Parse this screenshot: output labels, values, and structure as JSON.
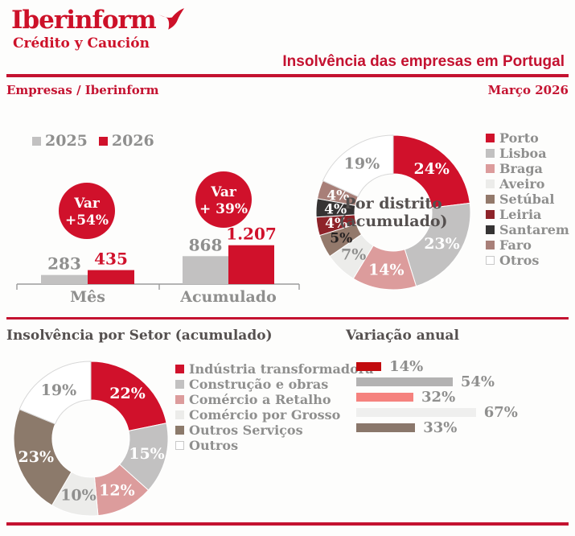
{
  "header": {
    "logo_title": "Iberinform",
    "logo_subtitle": "Crédito y Caución",
    "title": "Insolvência das empresas em Portugal",
    "breadcrumb": "Empresas / Iberinform",
    "date": "Março 2026"
  },
  "sections": {
    "sector_title": "Insolvência por Setor (acumulado)",
    "variation_title": "Variação anual"
  },
  "years_legend": [
    {
      "label": "2025",
      "color": "#c2c1c1"
    },
    {
      "label": "2026",
      "color": "#d0112b"
    }
  ],
  "colors": {
    "brand_red": "#cd1129",
    "rule_red": "#c41230",
    "text_gray": "#8f8f8e",
    "axis_gray": "#9b9b9b",
    "section_gray": "#55504f"
  },
  "chart_data": [
    {
      "id": "insolvency-bars",
      "type": "bar",
      "categories": [
        "Mês",
        "Acumulado"
      ],
      "series": [
        {
          "name": "2025",
          "color": "#c2c1c1",
          "values": [
            283,
            868
          ],
          "labels": [
            "283",
            "868"
          ],
          "label_color": "#8f8f8e"
        },
        {
          "name": "2026",
          "color": "#d0112b",
          "values": [
            435,
            1207
          ],
          "labels": [
            "435",
            "1.207"
          ],
          "label_color": "#d0112b"
        }
      ],
      "annotations": [
        {
          "line1": "Var",
          "line2": "+54%",
          "color": "#d0112b",
          "text_color": "#ffffff"
        },
        {
          "line1": "Var",
          "line2": "+ 39%",
          "color": "#d0112b",
          "text_color": "#ffffff"
        }
      ],
      "ylim": [
        0,
        1300
      ],
      "grid": false,
      "legend_position": "top-left"
    },
    {
      "id": "district-donut",
      "type": "pie",
      "title": "Por distrito (acumulado)",
      "center_label": [
        "Por distrito",
        "(acumulado)"
      ],
      "slices": [
        {
          "label": "Porto",
          "value": 24,
          "pct_label": "24%",
          "color": "#d0112b",
          "text_color": "#ffffff"
        },
        {
          "label": "Lisboa",
          "value": 23,
          "pct_label": "23%",
          "color": "#c2c1c1",
          "text_color": "#ffffff"
        },
        {
          "label": "Braga",
          "value": 14,
          "pct_label": "14%",
          "color": "#dc9c9c",
          "text_color": "#ffffff"
        },
        {
          "label": "Aveiro",
          "value": 7,
          "pct_label": "7%",
          "color": "#ececea",
          "text_color": "#8f8f8e"
        },
        {
          "label": "Setúbal",
          "value": 5,
          "pct_label": "5%",
          "color": "#93796b",
          "text_color": "#262222"
        },
        {
          "label": "Leiria",
          "value": 4,
          "pct_label": "4%",
          "color": "#8e2329",
          "text_color": "#ffffff"
        },
        {
          "label": "Santarem",
          "value": 4,
          "pct_label": "4%",
          "color": "#353333",
          "text_color": "#ffffff"
        },
        {
          "label": "Faro",
          "value": 4,
          "pct_label": "4%",
          "color": "#a87f78",
          "text_color": "#ffffff"
        },
        {
          "label": "Otros",
          "value": 19,
          "pct_label": "19%",
          "color": "#ffffff",
          "text_color": "#8f8f8e",
          "outline": true
        }
      ],
      "legend_position": "right"
    },
    {
      "id": "sector-donut",
      "type": "pie",
      "title": "Insolvência por Setor (acumulado)",
      "slices": [
        {
          "label": "Indústria transformadora",
          "value": 22,
          "pct_label": "22%",
          "color": "#d0112b",
          "text_color": "#ffffff"
        },
        {
          "label": "Construção e obras",
          "value": 15,
          "pct_label": "15%",
          "color": "#c2c1c1",
          "text_color": "#ffffff"
        },
        {
          "label": "Comércio a Retalho",
          "value": 12,
          "pct_label": "12%",
          "color": "#dc9c9c",
          "text_color": "#ffffff"
        },
        {
          "label": "Comércio por Grosso",
          "value": 10,
          "pct_label": "10%",
          "color": "#ececea",
          "text_color": "#8f8f8e"
        },
        {
          "label": "Outros Serviços",
          "value": 23,
          "pct_label": "23%",
          "color": "#8c7a6b",
          "text_color": "#ffffff"
        },
        {
          "label": "Outros",
          "value": 19,
          "pct_label": "19%",
          "color": "#ffffff",
          "text_color": "#8f8f8e",
          "outline": true
        }
      ],
      "legend_position": "right"
    },
    {
      "id": "annual-variation",
      "type": "bar",
      "orientation": "horizontal",
      "title": "Variação anual",
      "values": [
        14,
        54,
        32,
        67,
        33
      ],
      "labels": [
        "14%",
        "54%",
        "32%",
        "67%",
        "33%"
      ],
      "colors": [
        "#c20b0e",
        "#b3b2b2",
        "#f5827e",
        "#efefee",
        "#8a776b"
      ],
      "xlim": [
        0,
        70
      ],
      "grid": false
    }
  ]
}
